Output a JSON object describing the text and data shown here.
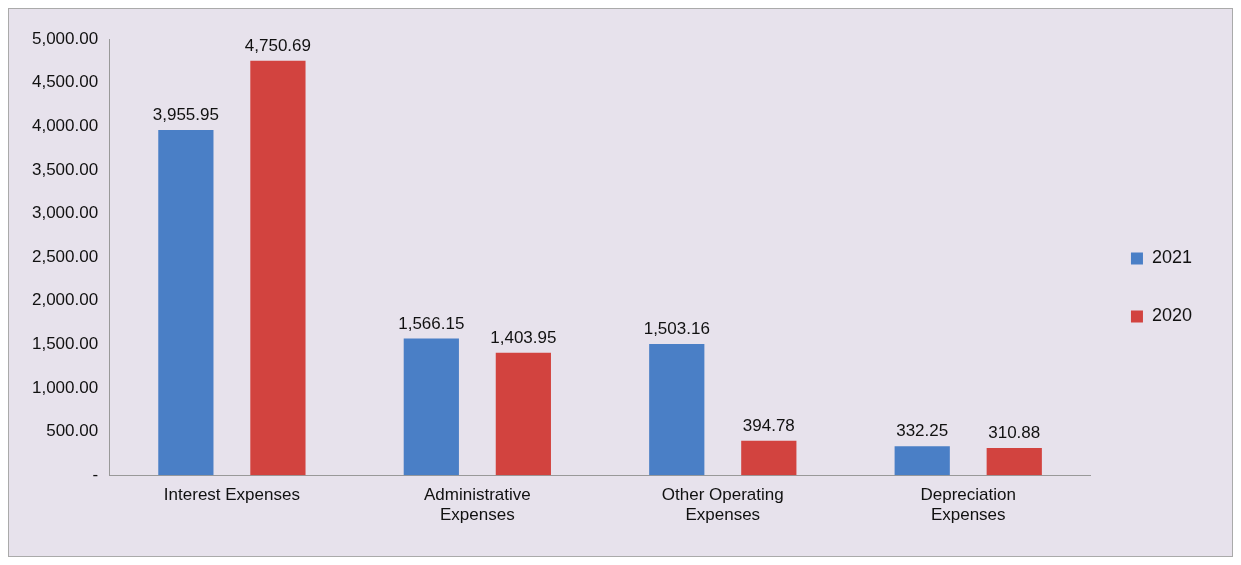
{
  "chart_data": {
    "type": "bar",
    "categories": [
      "Interest Expenses",
      "Administrative Expenses",
      "Other Operating Expenses",
      "Depreciation Expenses"
    ],
    "series": [
      {
        "name": "2021",
        "color": "#4a7fc6",
        "values": [
          3955.95,
          1566.15,
          1503.16,
          332.25
        ],
        "value_labels": [
          "3,955.95",
          "1,566.15",
          "1,503.16",
          "332.25"
        ]
      },
      {
        "name": "2020",
        "color": "#d2433f",
        "values": [
          4750.69,
          1403.95,
          394.78,
          310.88
        ],
        "value_labels": [
          "4,750.69",
          "1,403.95",
          "394.78",
          "310.88"
        ]
      }
    ],
    "ylim": [
      0,
      5000
    ],
    "yticks": [
      {
        "value": 0,
        "label": "-"
      },
      {
        "value": 500,
        "label": "500.00"
      },
      {
        "value": 1000,
        "label": "1,000.00"
      },
      {
        "value": 1500,
        "label": "1,500.00"
      },
      {
        "value": 2000,
        "label": "2,000.00"
      },
      {
        "value": 2500,
        "label": "2,500.00"
      },
      {
        "value": 3000,
        "label": "3,000.00"
      },
      {
        "value": 3500,
        "label": "3,500.00"
      },
      {
        "value": 4000,
        "label": "4,000.00"
      },
      {
        "value": 4500,
        "label": "4,500.00"
      },
      {
        "value": 5000,
        "label": "5,000.00"
      }
    ],
    "grid": false,
    "legend": "right"
  }
}
